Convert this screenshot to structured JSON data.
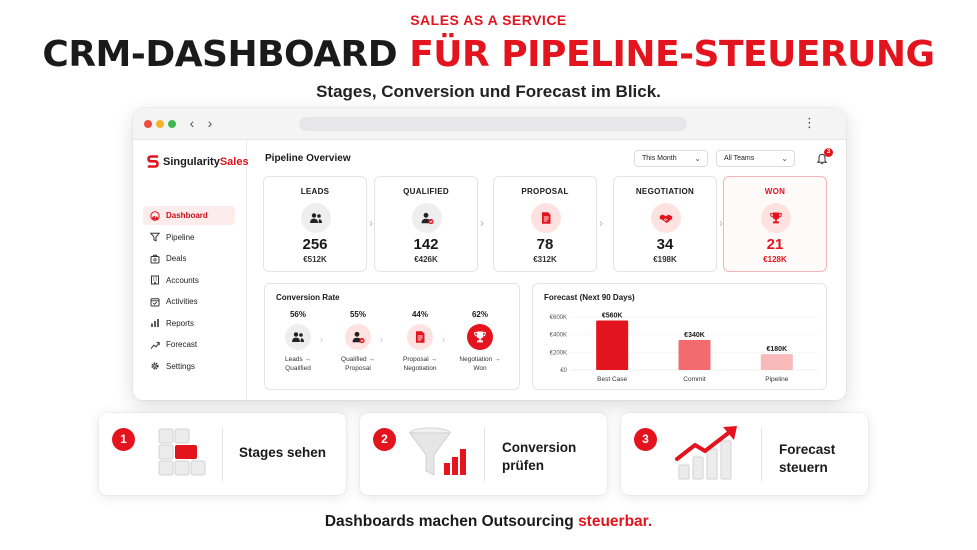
{
  "eyebrow": "SALES AS A SERVICE",
  "headline": {
    "part1": "CRM-DASHBOARD",
    "part2": "FÜR PIPELINE-STEUERUNG"
  },
  "subline": "Stages, Conversion und Forecast im Blick.",
  "app": {
    "logo": {
      "part1": "Singularity",
      "part2": "Sales"
    },
    "nav": [
      {
        "label": "Dashboard",
        "icon": "dashboard-gauge-icon",
        "active": true
      },
      {
        "label": "Pipeline",
        "icon": "filter-funnel-icon"
      },
      {
        "label": "Deals",
        "icon": "deal-box-icon"
      },
      {
        "label": "Accounts",
        "icon": "building-icon"
      },
      {
        "label": "Activities",
        "icon": "calendar-check-icon"
      },
      {
        "label": "Reports",
        "icon": "bar-chart-icon"
      },
      {
        "label": "Forecast",
        "icon": "trend-arrow-icon"
      },
      {
        "label": "Settings",
        "icon": "gear-icon"
      }
    ],
    "page_title": "Pipeline Overview",
    "filters": {
      "period": "This Month",
      "team": "All Teams"
    },
    "notifications": "3",
    "stages": [
      {
        "label": "LEADS",
        "count": "256",
        "value": "€512K",
        "icon": "users-icon"
      },
      {
        "label": "QUALIFIED",
        "count": "142",
        "value": "€426K",
        "icon": "user-check-icon"
      },
      {
        "label": "PROPOSAL",
        "count": "78",
        "value": "€312K",
        "icon": "document-icon"
      },
      {
        "label": "NEGOTIATION",
        "count": "34",
        "value": "€198K",
        "icon": "handshake-icon"
      },
      {
        "label": "WON",
        "count": "21",
        "value": "€128K",
        "icon": "trophy-icon"
      }
    ],
    "conversion": {
      "title": "Conversion Rate",
      "steps": [
        {
          "pct": "56%",
          "label": "Leads →\nQualified",
          "icon": "users-icon"
        },
        {
          "pct": "55%",
          "label": "Qualified →\nProposal",
          "icon": "user-check-icon"
        },
        {
          "pct": "44%",
          "label": "Proposal →\nNegotiation",
          "icon": "document-icon"
        },
        {
          "pct": "62%",
          "label": "Negotiation →\nWon",
          "icon": "trophy-icon"
        }
      ]
    },
    "forecast": {
      "title": "Forecast (Next 90 Days)"
    }
  },
  "chart_data": {
    "type": "bar",
    "title": "Forecast (Next 90 Days)",
    "categories": [
      "Best Case",
      "Commit",
      "Pipeline"
    ],
    "values": [
      560,
      340,
      180
    ],
    "value_labels": [
      "€560K",
      "€340K",
      "€180K"
    ],
    "y_ticks": [
      "€0",
      "€200K",
      "€400K",
      "€600K"
    ],
    "ylim": [
      0,
      600
    ],
    "unit": "€K",
    "grid": true,
    "colors": [
      "#e3141e",
      "#f26b6e",
      "#f8b9ba"
    ]
  },
  "features": [
    {
      "num": "1",
      "text": "Stages sehen",
      "art": "stacked-cubes-icon"
    },
    {
      "num": "2",
      "text": "Conversion\nprüfen",
      "art": "funnel-chart-icon"
    },
    {
      "num": "3",
      "text": "Forecast\nsteuern",
      "art": "growth-chart-icon"
    }
  ],
  "footer": {
    "part1": "Dashboards machen Outsourcing",
    "part2": "steuerbar."
  },
  "colors": {
    "accent": "#e3141e",
    "accent_light": "#fde2e2",
    "text": "#1a1a1a"
  }
}
